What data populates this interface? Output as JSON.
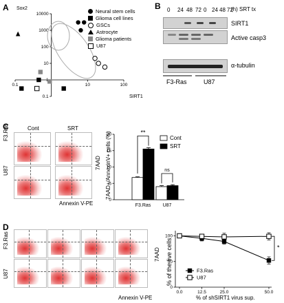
{
  "panels": {
    "A": "A",
    "B": "B",
    "C": "C",
    "D": "D"
  },
  "panelA": {
    "title": "Sox2",
    "xlabel": "SIRT1",
    "legend": [
      {
        "label": "Neural stem cells",
        "marker": "circle-f"
      },
      {
        "label": "Glioma cell lines",
        "marker": "square-f"
      },
      {
        "label": "GSCs",
        "marker": "circle-o"
      },
      {
        "label": "Astrocyte",
        "marker": "tri"
      },
      {
        "label": "Glioma patients",
        "marker": "square-g"
      },
      {
        "label": "U87",
        "marker": "square-o"
      }
    ]
  },
  "panelB": {
    "timepoints": [
      "0",
      "24",
      "48",
      "72",
      "0",
      "24",
      "48",
      "72"
    ],
    "header_suffix": "(h) SRT tx",
    "bands": [
      "SIRT1",
      "Active casp3",
      "α-tubulin"
    ],
    "groups": [
      "F3-Ras",
      "U87"
    ]
  },
  "panelC": {
    "facs_cols": [
      "Cont",
      "SRT"
    ],
    "facs_rows": [
      "F3.Ras",
      "U87"
    ],
    "facs_ylabel": "7AAD",
    "facs_xlabel": "Annexin V-PE",
    "sig_f3": "**",
    "sig_u87": "ns"
  },
  "panelD": {
    "facs_rows": [
      "F3.Ras",
      "U87"
    ],
    "facs_ylabel": "7AAD",
    "facs_xlabel": "Annexin V-PE",
    "sig": "*"
  },
  "chart_data": [
    {
      "type": "scatter",
      "title": "Sox2",
      "xlabel": "SIRT1",
      "ylabel": "",
      "xscale": "log",
      "yscale": "log",
      "xlim": [
        0.1,
        100
      ],
      "ylim": [
        0.1,
        10000
      ],
      "xticks": [
        "0.1",
        "1",
        "10",
        "100"
      ],
      "yticks": [
        "10000",
        "1000",
        "100",
        "10",
        "1",
        "0.1"
      ],
      "legend_position": "top-right",
      "series": [
        {
          "name": "Neural stem cells",
          "marker": "circle-f",
          "color": "#000000",
          "points": [
            [
              5.5,
              3000
            ],
            [
              6.5,
              1000
            ],
            [
              8,
              3000
            ]
          ]
        },
        {
          "name": "Glioma cell lines",
          "marker": "square-f",
          "color": "#000000",
          "points": [
            [
              0.15,
              0.3
            ],
            [
              0.45,
              1.0
            ],
            [
              2.2,
              0.3
            ]
          ]
        },
        {
          "name": "GSCs",
          "marker": "circle-o",
          "color": "#000000",
          "points": [
            [
              16,
              20
            ],
            [
              20,
              10
            ],
            [
              30,
              6
            ]
          ]
        },
        {
          "name": "Astrocyte",
          "marker": "tri",
          "color": "#000000",
          "points": [
            [
              0.12,
              600
            ]
          ]
        },
        {
          "name": "Glioma patients",
          "marker": "square-g",
          "color": "#888888",
          "points": [
            [
              0.5,
              3
            ],
            [
              0.9,
              0.8
            ]
          ]
        },
        {
          "name": "U87",
          "marker": "square-o",
          "color": "#000000",
          "points": [
            [
              0.4,
              0.3
            ]
          ]
        }
      ]
    },
    {
      "type": "bar",
      "ylabel": "7AAD+/AnnexinV+ cells (%)",
      "categories": [
        "F3.Ras",
        "U87"
      ],
      "ylim": [
        0,
        20
      ],
      "yticks": [
        "0",
        "5",
        "10",
        "15",
        "20"
      ],
      "legend_position": "top-right",
      "series": [
        {
          "name": "Cont",
          "color": "#ffffff",
          "values": [
            6.8,
            4.0
          ],
          "errors": [
            0.2,
            0.3
          ]
        },
        {
          "name": "SRT",
          "color": "#000000",
          "values": [
            15.5,
            4.3
          ],
          "errors": [
            0.4,
            0.3
          ]
        }
      ]
    },
    {
      "type": "line",
      "xlabel": "% of shSIRT1 virus sup.",
      "ylabel": "% of the live cells",
      "x": [
        0,
        12.5,
        25,
        50
      ],
      "xticks": [
        "0.0",
        "12.5",
        "25.0",
        "50.0"
      ],
      "ylim": [
        0,
        110
      ],
      "yticks": [
        "0",
        "50",
        "100"
      ],
      "legend_position": "bottom-left",
      "series": [
        {
          "name": "F3.Ras",
          "marker": "square-f",
          "values": [
            100,
            95,
            89,
            52
          ],
          "errors": [
            0,
            5,
            5,
            7
          ]
        },
        {
          "name": "U87",
          "marker": "square-o",
          "values": [
            100,
            99,
            98,
            99
          ],
          "errors": [
            0,
            4,
            7,
            7
          ]
        }
      ]
    }
  ]
}
